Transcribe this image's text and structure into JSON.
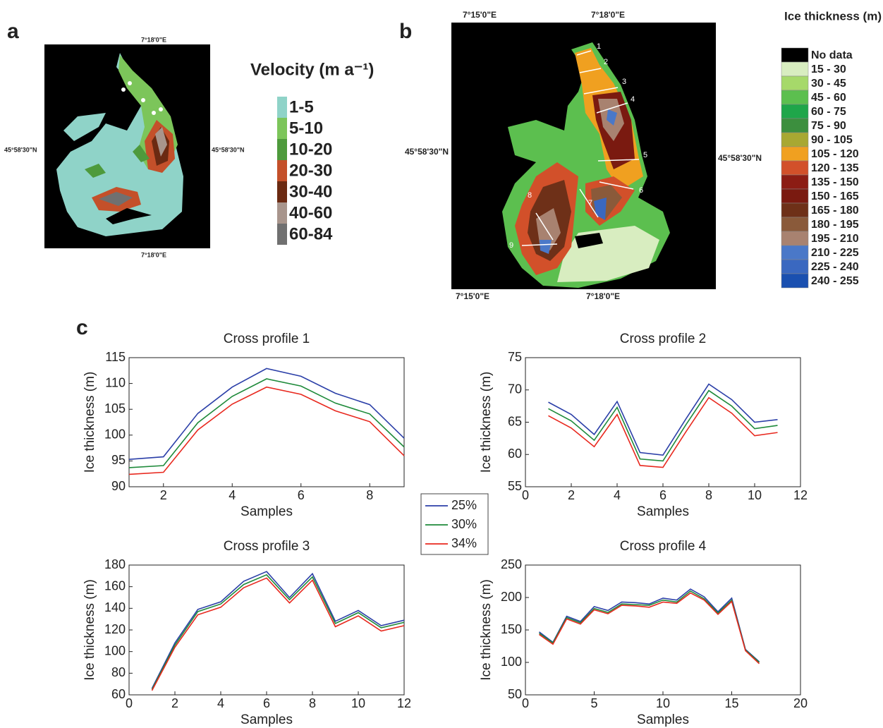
{
  "panel_labels": [
    "a",
    "b",
    "c"
  ],
  "velocity_map": {
    "title": "Velocity (m a⁻¹)",
    "coords": {
      "top": "7°18'0\"E",
      "bottom": "7°18'0\"E",
      "left": "45°58'30\"N",
      "right": "45°58'30\"N"
    },
    "legend": [
      {
        "label": "1-5",
        "color": "#8fd3c8"
      },
      {
        "label": "5-10",
        "color": "#7cc55a"
      },
      {
        "label": "10-20",
        "color": "#4e9a3c"
      },
      {
        "label": "20-30",
        "color": "#c4502a"
      },
      {
        "label": "30-40",
        "color": "#6b2a12"
      },
      {
        "label": "40-60",
        "color": "#a8958c"
      },
      {
        "label": "60-84",
        "color": "#707070"
      }
    ]
  },
  "thickness_map": {
    "title": "Ice thickness (m)",
    "coords": {
      "top": [
        "7°15'0\"E",
        "7°18'0\"E"
      ],
      "bottom": [
        "7°15'0\"E",
        "7°18'0\"E"
      ],
      "left": "45°58'30\"N",
      "right": "45°58'30\"N"
    },
    "profile_labels": [
      "1",
      "2",
      "3",
      "4",
      "5",
      "6",
      "7",
      "8",
      "9"
    ],
    "legend": [
      {
        "label": "No data",
        "color": "#000000"
      },
      {
        "label": "15 - 30",
        "color": "#d8edc0"
      },
      {
        "label": "30 - 45",
        "color": "#a6d96a"
      },
      {
        "label": "45 - 60",
        "color": "#5cbf4f"
      },
      {
        "label": "60 - 75",
        "color": "#1fa64a"
      },
      {
        "label": "75 - 90",
        "color": "#3c8f3e"
      },
      {
        "label": "90 - 105",
        "color": "#a8a832"
      },
      {
        "label": "105 - 120",
        "color": "#f0a020"
      },
      {
        "label": "120 - 135",
        "color": "#d2502a"
      },
      {
        "label": "135 - 150",
        "color": "#8c1c14"
      },
      {
        "label": "150 - 165",
        "color": "#7a1a10"
      },
      {
        "label": "165 - 180",
        "color": "#6e3018"
      },
      {
        "label": "180 - 195",
        "color": "#8a5a3a"
      },
      {
        "label": "195 - 210",
        "color": "#a88270"
      },
      {
        "label": "210 - 225",
        "color": "#4a78c8"
      },
      {
        "label": "225 - 240",
        "color": "#3a68c0"
      },
      {
        "label": "240 - 255",
        "color": "#1a50b0"
      }
    ]
  },
  "chart_data": [
    {
      "type": "line",
      "title": "Cross profile 1",
      "xlabel": "Samples",
      "ylabel": "Ice thickness (m)",
      "x": [
        1,
        2,
        3,
        4,
        5,
        6,
        7,
        8,
        9
      ],
      "xlim": [
        1,
        9
      ],
      "xticks": [
        2,
        4,
        6,
        8
      ],
      "ylim": [
        90,
        115
      ],
      "yticks": [
        90,
        95,
        100,
        105,
        110,
        115
      ],
      "series": [
        {
          "name": "25%",
          "color": "#2b3fa8",
          "values": [
            95.3,
            95.8,
            104.2,
            109.3,
            112.9,
            111.4,
            108.1,
            105.9,
            99.4
          ]
        },
        {
          "name": "30%",
          "color": "#1e8a3a",
          "values": [
            93.7,
            94.1,
            102.4,
            107.5,
            110.9,
            109.5,
            106.2,
            104.1,
            97.7
          ]
        },
        {
          "name": "34%",
          "color": "#e8281e",
          "values": [
            92.4,
            92.8,
            101.0,
            106.0,
            109.3,
            107.9,
            104.7,
            102.6,
            96.0
          ]
        }
      ]
    },
    {
      "type": "line",
      "title": "Cross profile 2",
      "xlabel": "Samples",
      "ylabel": "Ice thickness (m)",
      "x": [
        1,
        2,
        3,
        4,
        5,
        6,
        7,
        8,
        9,
        10,
        11
      ],
      "xlim": [
        0,
        12
      ],
      "xticks": [
        0,
        2,
        4,
        6,
        8,
        10,
        12
      ],
      "ylim": [
        55,
        75
      ],
      "yticks": [
        55,
        60,
        65,
        70,
        75
      ],
      "series": [
        {
          "name": "25%",
          "color": "#2b3fa8",
          "values": [
            68.1,
            66.2,
            63.1,
            68.2,
            60.3,
            59.9,
            65.5,
            70.9,
            68.5,
            65.0,
            65.4
          ]
        },
        {
          "name": "30%",
          "color": "#1e8a3a",
          "values": [
            67.1,
            65.2,
            62.2,
            67.3,
            59.3,
            59.0,
            64.6,
            69.9,
            67.5,
            64.0,
            64.5
          ]
        },
        {
          "name": "34%",
          "color": "#e8281e",
          "values": [
            66.0,
            64.1,
            61.2,
            66.2,
            58.3,
            58.0,
            63.5,
            68.8,
            66.4,
            62.9,
            63.4
          ]
        }
      ]
    },
    {
      "type": "line",
      "title": "Cross profile 3",
      "xlabel": "Samples",
      "ylabel": "Ice thickness (m)",
      "x": [
        1,
        2,
        3,
        4,
        5,
        6,
        7,
        8,
        9,
        10,
        11,
        12
      ],
      "xlim": [
        0,
        12
      ],
      "xticks": [
        0,
        2,
        4,
        6,
        8,
        10,
        12
      ],
      "ylim": [
        60,
        180
      ],
      "yticks": [
        60,
        80,
        100,
        120,
        140,
        160,
        180
      ],
      "series": [
        {
          "name": "25%",
          "color": "#2b3fa8",
          "values": [
            66,
            108,
            139,
            146,
            165,
            174,
            150,
            172,
            128,
            138,
            124,
            129
          ]
        },
        {
          "name": "30%",
          "color": "#1e8a3a",
          "values": [
            65,
            106,
            137,
            144,
            162,
            171,
            148,
            169,
            126,
            136,
            122,
            127
          ]
        },
        {
          "name": "34%",
          "color": "#e8281e",
          "values": [
            64,
            104,
            134,
            141,
            159,
            168,
            145,
            166,
            123,
            133,
            119,
            124
          ]
        }
      ]
    },
    {
      "type": "line",
      "title": "Cross profile 4",
      "xlabel": "Samples",
      "ylabel": "Ice thickness (m)",
      "x": [
        1,
        2,
        3,
        4,
        5,
        6,
        7,
        8,
        9,
        10,
        11,
        12,
        13,
        14,
        15,
        16,
        17
      ],
      "xlim": [
        0,
        20
      ],
      "xticks": [
        0,
        5,
        10,
        15,
        20
      ],
      "ylim": [
        50,
        250
      ],
      "yticks": [
        50,
        100,
        150,
        200,
        250
      ],
      "series": [
        {
          "name": "25%",
          "color": "#2b3fa8",
          "values": [
            147,
            131,
            171,
            163,
            186,
            180,
            193,
            192,
            190,
            199,
            196,
            213,
            201,
            178,
            199,
            120,
            101
          ]
        },
        {
          "name": "30%",
          "color": "#1e8a3a",
          "values": [
            145,
            130,
            169,
            161,
            183,
            177,
            190,
            189,
            188,
            196,
            193,
            210,
            198,
            176,
            196,
            119,
            100
          ]
        },
        {
          "name": "34%",
          "color": "#e8281e",
          "values": [
            143,
            128,
            167,
            159,
            181,
            175,
            188,
            187,
            185,
            193,
            191,
            207,
            196,
            174,
            194,
            118,
            98
          ]
        }
      ]
    }
  ]
}
